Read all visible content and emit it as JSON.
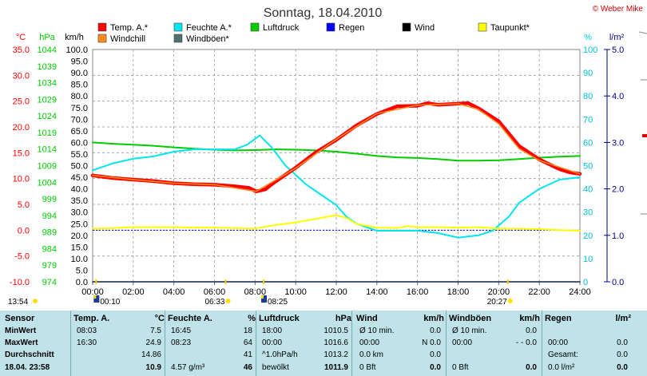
{
  "title": "Sonntag, 18.04.2010",
  "copyright": "© Weber Mike",
  "legend": [
    {
      "label": "Temp. A.*",
      "color": "#ff0000"
    },
    {
      "label": "Feuchte A.*",
      "color": "#00e5ee"
    },
    {
      "label": "Luftdruck",
      "color": "#00cc00"
    },
    {
      "label": "Regen",
      "color": "#0000ff"
    },
    {
      "label": "Wind",
      "color": "#000000"
    },
    {
      "label": "Taupunkt*",
      "color": "#ffff00"
    },
    {
      "label": "Windchill",
      "color": "#ff8c1a"
    },
    {
      "label": "Windböen*",
      "color": "#507070"
    }
  ],
  "chart_data": {
    "type": "line",
    "x_unit": "hour",
    "xlim": [
      0,
      24
    ],
    "x_ticks": [
      "00:00",
      "02:00",
      "04:00",
      "06:00",
      "08:00",
      "10:00",
      "12:00",
      "14:00",
      "16:00",
      "18:00",
      "20:00",
      "22:00",
      "24:00"
    ],
    "axes": {
      "temp": {
        "label": "°C",
        "ticks": [
          "35.0",
          "30.0",
          "25.0",
          "20.0",
          "15.0",
          "10.0",
          "5.0",
          "0.0",
          "-5.0",
          "-10.0"
        ],
        "ylim": [
          -10,
          35
        ],
        "color": "#ff0000"
      },
      "pressure": {
        "label": "hPa",
        "ticks": [
          "1044",
          "1039",
          "1034",
          "1029",
          "1024",
          "1019",
          "1014",
          "1009",
          "1004",
          "999",
          "994",
          "989",
          "984",
          "979",
          "974"
        ],
        "ylim": [
          974,
          1044
        ],
        "color": "#00cc00"
      },
      "wind": {
        "label": "km/h",
        "ticks": [
          "100.0",
          "95.0",
          "90.0",
          "85.0",
          "80.0",
          "75.0",
          "70.0",
          "65.0",
          "60.0",
          "55.0",
          "50.0",
          "45.0",
          "40.0",
          "35.0",
          "30.0",
          "25.0",
          "20.0",
          "15.0",
          "10.0",
          "5.0",
          "0.0"
        ],
        "ylim": [
          0,
          100
        ],
        "color": "#000000"
      },
      "humidity": {
        "label": "%",
        "ticks": [
          "100",
          "90",
          "80",
          "70",
          "60",
          "50",
          "40",
          "30",
          "20",
          "10",
          "0"
        ],
        "ylim": [
          0,
          100
        ],
        "color": "#00d0e0"
      },
      "rain": {
        "label": "l/m²",
        "ticks": [
          "5.0",
          "4.0",
          "3.0",
          "2.0",
          "1.0",
          "0.0"
        ],
        "ylim": [
          0,
          5
        ],
        "color": "#00008b"
      }
    },
    "series": [
      {
        "name": "Temp. A.*",
        "axis": "temp",
        "color": "#ff0000",
        "points": [
          [
            0,
            10.6
          ],
          [
            1,
            10.1
          ],
          [
            2,
            9.8
          ],
          [
            3,
            9.5
          ],
          [
            4,
            9.1
          ],
          [
            5,
            8.9
          ],
          [
            6,
            8.8
          ],
          [
            7,
            8.5
          ],
          [
            7.7,
            8.2
          ],
          [
            8.05,
            7.5
          ],
          [
            8.5,
            7.9
          ],
          [
            9,
            9.4
          ],
          [
            10,
            12.1
          ],
          [
            11,
            15.1
          ],
          [
            12,
            17.5
          ],
          [
            13,
            20.3
          ],
          [
            14,
            22.5
          ],
          [
            15,
            24.0
          ],
          [
            16,
            24.1
          ],
          [
            16.5,
            24.6
          ],
          [
            17,
            24.3
          ],
          [
            18,
            24.5
          ],
          [
            18.5,
            24.6
          ],
          [
            19,
            23.6
          ],
          [
            20,
            21.1
          ],
          [
            21,
            16.3
          ],
          [
            22,
            13.7
          ],
          [
            23,
            11.8
          ],
          [
            23.5,
            11.2
          ],
          [
            24,
            10.9
          ]
        ]
      },
      {
        "name": "Windchill",
        "axis": "temp",
        "color": "#ff8c1a",
        "points": [
          [
            0,
            10.6
          ],
          [
            2,
            9.8
          ],
          [
            4,
            9.1
          ],
          [
            6,
            8.8
          ],
          [
            8.05,
            7.5
          ],
          [
            10,
            12.0
          ],
          [
            12,
            17.6
          ],
          [
            14,
            22.6
          ],
          [
            16,
            24.2
          ],
          [
            18,
            24.5
          ],
          [
            19,
            23.4
          ],
          [
            20,
            20.6
          ],
          [
            21,
            15.8
          ],
          [
            22,
            13.5
          ],
          [
            24,
            10.9
          ]
        ]
      },
      {
        "name": "Feuchte A.*",
        "axis": "humidity",
        "color": "#00e5ee",
        "points": [
          [
            0,
            48
          ],
          [
            1,
            51
          ],
          [
            2,
            53
          ],
          [
            3,
            54
          ],
          [
            4,
            56
          ],
          [
            5,
            57
          ],
          [
            6,
            57
          ],
          [
            7,
            57
          ],
          [
            7.6,
            59
          ],
          [
            8.23,
            63
          ],
          [
            8.8,
            58
          ],
          [
            9.5,
            50
          ],
          [
            10,
            46
          ],
          [
            10.5,
            42
          ],
          [
            11,
            39
          ],
          [
            12,
            33
          ],
          [
            12.5,
            28
          ],
          [
            13,
            25
          ],
          [
            14,
            22
          ],
          [
            15,
            22
          ],
          [
            16,
            22
          ],
          [
            17,
            21
          ],
          [
            18,
            19
          ],
          [
            19,
            20
          ],
          [
            19.7,
            22
          ],
          [
            20.5,
            28
          ],
          [
            21,
            34
          ],
          [
            22,
            40
          ],
          [
            23,
            44
          ],
          [
            24,
            45
          ]
        ]
      },
      {
        "name": "Luftdruck",
        "axis": "pressure",
        "color": "#00cc00",
        "points": [
          [
            0,
            1016.0
          ],
          [
            1,
            1015.6
          ],
          [
            2,
            1015.3
          ],
          [
            3,
            1015.0
          ],
          [
            4,
            1014.5
          ],
          [
            5,
            1014.1
          ],
          [
            6,
            1013.8
          ],
          [
            7,
            1013.6
          ],
          [
            8,
            1013.7
          ],
          [
            9,
            1013.9
          ],
          [
            10,
            1013.8
          ],
          [
            11,
            1013.6
          ],
          [
            12,
            1013.2
          ],
          [
            13,
            1012.6
          ],
          [
            14,
            1011.9
          ],
          [
            15,
            1011.5
          ],
          [
            16,
            1011.3
          ],
          [
            17,
            1011.0
          ],
          [
            18,
            1010.5
          ],
          [
            19,
            1010.5
          ],
          [
            20,
            1010.6
          ],
          [
            21,
            1011.0
          ],
          [
            22,
            1011.4
          ],
          [
            23,
            1011.7
          ],
          [
            24,
            1011.9
          ]
        ]
      },
      {
        "name": "Taupunkt*",
        "axis": "temp",
        "color": "#ffff00",
        "points": [
          [
            0,
            0.3
          ],
          [
            1,
            0.4
          ],
          [
            2,
            0.6
          ],
          [
            3,
            0.6
          ],
          [
            4,
            0.6
          ],
          [
            5,
            0.5
          ],
          [
            6,
            0.5
          ],
          [
            7,
            0.4
          ],
          [
            8,
            0.3
          ],
          [
            9,
            1.0
          ],
          [
            10,
            1.5
          ],
          [
            11,
            2.2
          ],
          [
            12,
            2.9
          ],
          [
            12.5,
            2.4
          ],
          [
            13,
            1.2
          ],
          [
            14,
            0.5
          ],
          [
            15,
            0.4
          ],
          [
            15.5,
            0.8
          ],
          [
            16,
            0.6
          ],
          [
            17,
            0.6
          ],
          [
            18,
            0.5
          ],
          [
            19,
            0.6
          ],
          [
            20,
            0.3
          ],
          [
            21,
            0.3
          ],
          [
            22,
            0.2
          ],
          [
            23,
            0.0
          ],
          [
            24,
            -0.1
          ]
        ]
      },
      {
        "name": "Regen",
        "axis": "rain",
        "color": "#0000ff",
        "points": [
          [
            0,
            0
          ],
          [
            24,
            0
          ]
        ]
      },
      {
        "name": "Wind",
        "axis": "wind",
        "color": "#000000",
        "points": [
          [
            0,
            0
          ],
          [
            24,
            0
          ]
        ]
      },
      {
        "name": "Windböen*",
        "axis": "wind",
        "color": "#507070",
        "points": [
          [
            0,
            0
          ],
          [
            24,
            0
          ]
        ]
      }
    ],
    "zero_line": {
      "axis": "temp",
      "value": 0,
      "color": "#0000cc"
    },
    "sun_markers": [
      {
        "label": "13:54",
        "x": -2.6,
        "row": 1
      },
      {
        "label": "00:10",
        "x": 0.17,
        "row": 2
      },
      {
        "label": "06:33",
        "x": 6.55,
        "row": 1
      },
      {
        "label": "08:25",
        "x": 8.42,
        "row": 2
      },
      {
        "label": "20:27",
        "x": 20.45,
        "row": 1
      }
    ],
    "grid": true
  },
  "stats": {
    "sensor": {
      "head": "Sensor",
      "rows": [
        "MinWert",
        "MaxWert",
        "Durchschnitt",
        "18.04. 23:58"
      ]
    },
    "temp": {
      "head": "Temp. A.",
      "unit": "°C",
      "rows": [
        [
          "08:03",
          "7.5"
        ],
        [
          "16:30",
          "24.9"
        ],
        [
          "",
          "14.86"
        ],
        [
          "",
          "10.9"
        ]
      ]
    },
    "feuchte": {
      "head": "Feuchte A.",
      "unit": "%",
      "rows": [
        [
          "16:45",
          "18"
        ],
        [
          "08:23",
          "64"
        ],
        [
          "",
          "41"
        ],
        [
          "4.57 g/m³",
          "46"
        ]
      ]
    },
    "luft": {
      "head": "Luftdruck",
      "unit": "hPa",
      "rows": [
        [
          "18:00",
          "1010.5"
        ],
        [
          "00:00",
          "1016.6"
        ],
        [
          "^1.0hPa/h",
          "1013.2"
        ],
        [
          "bewölkt",
          "1011.9"
        ]
      ]
    },
    "wind": {
      "head": "Wind",
      "unit": "km/h",
      "rows": [
        [
          "Ø 10 min.",
          "0.0"
        ],
        [
          "00:00",
          "N 0.0"
        ],
        [
          "0.0 km",
          "0.0"
        ],
        [
          "0 Bft",
          "0.0"
        ]
      ]
    },
    "boeen": {
      "head": "Windböen",
      "unit": "km/h",
      "rows": [
        [
          "Ø 10 min.",
          "0.0"
        ],
        [
          "00:00",
          "- - 0.0"
        ],
        [
          "",
          ""
        ],
        [
          "0 Bft",
          "0.0"
        ]
      ]
    },
    "regen": {
      "head": "Regen",
      "unit": "l/m²",
      "rows": [
        [
          "",
          ""
        ],
        [
          "00:00",
          "0.0"
        ],
        [
          "Gesamt:",
          "0.0"
        ],
        [
          "0.0 l/m²",
          "0.0"
        ]
      ]
    }
  }
}
